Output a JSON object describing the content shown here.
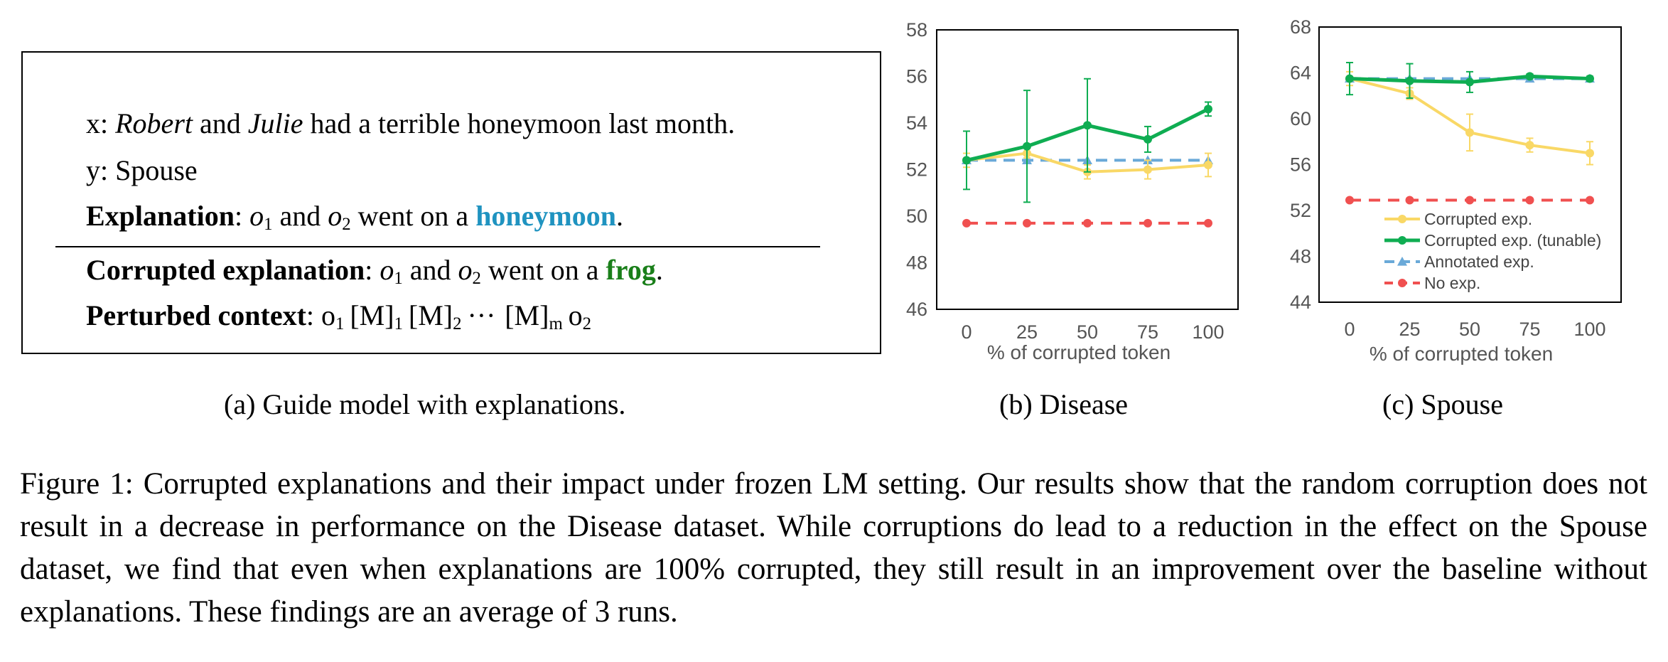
{
  "panel_a": {
    "x_prefix": "x: ",
    "x_name1": "Robert",
    "x_and": " and ",
    "x_name2": "Julie",
    "x_rest": " had a terrible honeymoon last month.",
    "y_text": "y: Spouse",
    "expl_label": "Explanation",
    "expl_colon": ": ",
    "o1": "o",
    "o1_sub": "1",
    "and_text": " and ",
    "o2": "o",
    "o2_sub": "2",
    "expl_went": " went on a ",
    "expl_keyword": "honeymoon",
    "period": ".",
    "corr_label": "Corrupted explanation",
    "corr_keyword": "frog",
    "pert_label": "Perturbed context",
    "pert_o1": "o",
    "pert_o1_sub": "1",
    "pert_m1": "[M]",
    "pert_m1_sub": "1",
    "pert_m2": "[M]",
    "pert_m2_sub": "2",
    "pert_dots": "···",
    "pert_mm": "[M]",
    "pert_mm_sub": "m",
    "pert_o2": "o",
    "pert_o2_sub": "2"
  },
  "captions": {
    "a": "(a) Guide model with explanations.",
    "b": "(b) Disease",
    "c": "(c) Spouse",
    "main": "Figure 1: Corrupted explanations and their impact under frozen LM setting. Our results show that the random corruption does not result in a decrease in performance on the Disease dataset. While corruptions do lead to a reduction in the effect on the Spouse dataset, we find that even when explanations are 100% corrupted, they still result in an improvement over the baseline without explanations. These findings are an average of 3 runs."
  },
  "colors": {
    "corrupted": "#f9d866",
    "tunable": "#0fad52",
    "annotated": "#6aa9d8",
    "noexp": "#f05050"
  },
  "chart_data": [
    {
      "type": "line",
      "id": "disease",
      "xlabel": "% of corrupted token",
      "ylabel": "",
      "x": [
        0,
        25,
        50,
        75,
        100
      ],
      "ylim": [
        46,
        58
      ],
      "yticks": [
        46,
        48,
        50,
        52,
        54,
        56,
        58
      ],
      "grid": false,
      "legend": "none",
      "series": [
        {
          "name": "Corrupted exp.",
          "values": [
            52.4,
            52.7,
            51.9,
            52.0,
            52.2
          ],
          "err": [
            0.3,
            0.2,
            0.3,
            0.4,
            0.5
          ]
        },
        {
          "name": "Corrupted exp. (tunable)",
          "values": [
            52.4,
            53.0,
            53.9,
            53.3,
            54.6
          ],
          "err": [
            1.25,
            2.4,
            2.0,
            0.55,
            0.3
          ]
        },
        {
          "name": "Annotated exp.",
          "values": [
            52.4,
            52.4,
            52.4,
            52.4,
            52.4
          ],
          "err": null
        },
        {
          "name": "No exp.",
          "values": [
            49.7,
            49.7,
            49.7,
            49.7,
            49.7
          ],
          "err": null
        }
      ]
    },
    {
      "type": "line",
      "id": "spouse",
      "xlabel": "% of corrupted token",
      "ylabel": "",
      "x": [
        0,
        25,
        50,
        75,
        100
      ],
      "ylim": [
        44,
        68
      ],
      "yticks": [
        44,
        48,
        52,
        56,
        60,
        64,
        68
      ],
      "grid": false,
      "legend": "bottom-left",
      "series": [
        {
          "name": "Corrupted exp.",
          "values": [
            63.5,
            62.2,
            58.8,
            57.7,
            57.0
          ],
          "err": [
            0.6,
            0.5,
            1.6,
            0.6,
            1.0
          ]
        },
        {
          "name": "Corrupted exp. (tunable)",
          "values": [
            63.5,
            63.3,
            63.2,
            63.7,
            63.5
          ],
          "err": [
            1.4,
            1.5,
            0.9,
            0.2,
            0.2
          ]
        },
        {
          "name": "Annotated exp.",
          "values": [
            63.5,
            63.5,
            63.5,
            63.5,
            63.5
          ],
          "err": null
        },
        {
          "name": "No exp.",
          "values": [
            52.9,
            52.9,
            52.9,
            52.9,
            52.9
          ],
          "err": null
        }
      ]
    }
  ]
}
